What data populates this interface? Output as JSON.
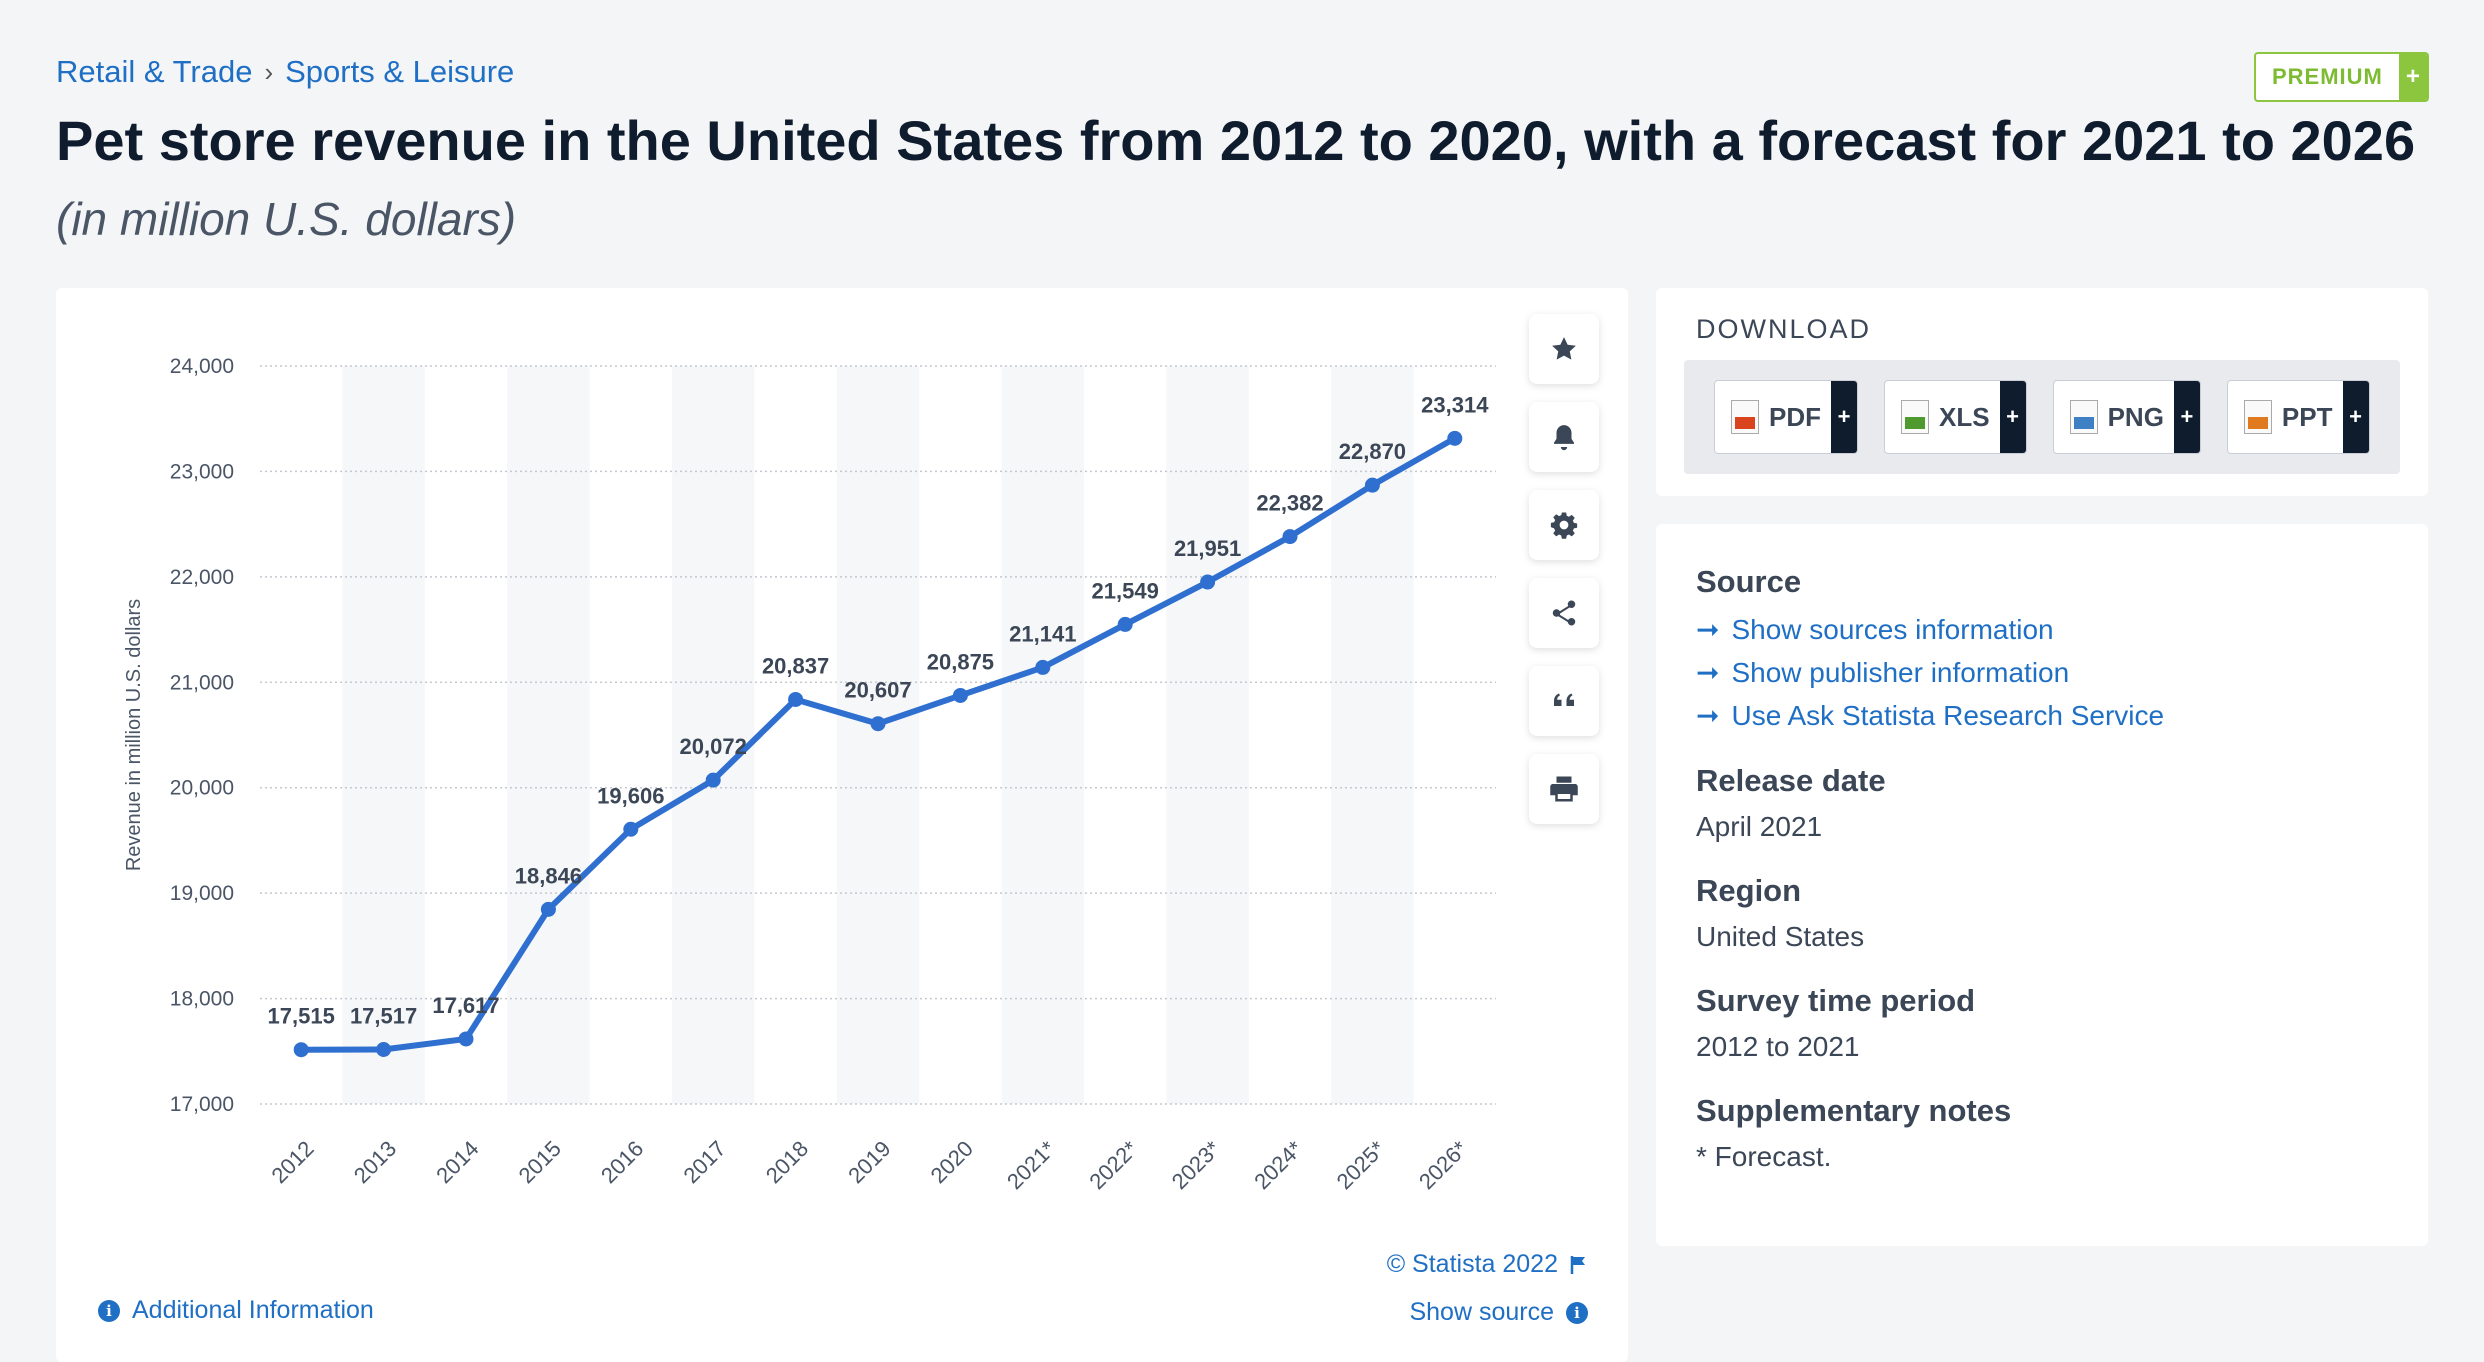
{
  "breadcrumb": {
    "part1": "Retail & Trade",
    "sep": "›",
    "part2": "Sports & Leisure"
  },
  "premium": {
    "label": "PREMIUM",
    "plus": "+"
  },
  "title": "Pet store revenue in the United States from 2012 to 2020, with a forecast for 2021 to 2026",
  "subtitle": "(in million U.S. dollars)",
  "colors": {
    "line": "#2f6fd0",
    "link": "#1f6fc5",
    "premium": "#8cc63e"
  },
  "tools": [
    "star-icon",
    "bell-icon",
    "gear-icon",
    "share-icon",
    "quote-icon",
    "print-icon"
  ],
  "chart_footer": {
    "copyright": "© Statista 2022",
    "show_source": "Show source",
    "additional_info": "Additional Information"
  },
  "download": {
    "title": "DOWNLOAD",
    "buttons": [
      {
        "label": "PDF",
        "icon": "pdf-file-icon",
        "color": "#d9441c"
      },
      {
        "label": "XLS",
        "icon": "xls-file-icon",
        "color": "#4f9a2f"
      },
      {
        "label": "PNG",
        "icon": "png-file-icon",
        "color": "#3f7fc4"
      },
      {
        "label": "PPT",
        "icon": "ppt-file-icon",
        "color": "#e07a1f"
      }
    ],
    "plus": "+"
  },
  "source": {
    "heading": "Source",
    "links": [
      "Show sources information",
      "Show publisher information",
      "Use Ask Statista Research Service"
    ],
    "release_label": "Release date",
    "release_value": "April 2021",
    "region_label": "Region",
    "region_value": "United States",
    "period_label": "Survey time period",
    "period_value": "2012 to 2021",
    "notes_label": "Supplementary notes",
    "notes_value": "* Forecast."
  },
  "chart_data": {
    "type": "line",
    "categories": [
      "2012",
      "2013",
      "2014",
      "2015",
      "2016",
      "2017",
      "2018",
      "2019",
      "2020",
      "2021*",
      "2022*",
      "2023*",
      "2024*",
      "2025*",
      "2026*"
    ],
    "values": [
      17515,
      17517,
      17617,
      18846,
      19606,
      20072,
      20837,
      20607,
      20875,
      21141,
      21549,
      21951,
      22382,
      22870,
      23314
    ],
    "data_labels": [
      "17,515",
      "17,517",
      "17,617",
      "18,846",
      "19,606",
      "20,072",
      "20,837",
      "20,607",
      "20,875",
      "21,141",
      "21,549",
      "21,951",
      "22,382",
      "22,870",
      "23,314"
    ],
    "ylabel": "Revenue in million U.S. dollars",
    "xlabel": "",
    "ylim": [
      17000,
      24000
    ],
    "yticks": [
      17000,
      18000,
      19000,
      20000,
      21000,
      22000,
      23000,
      24000
    ],
    "ytick_labels": [
      "17,000",
      "18,000",
      "19,000",
      "20,000",
      "21,000",
      "22,000",
      "23,000",
      "24,000"
    ],
    "grid": true,
    "legend": "none"
  }
}
